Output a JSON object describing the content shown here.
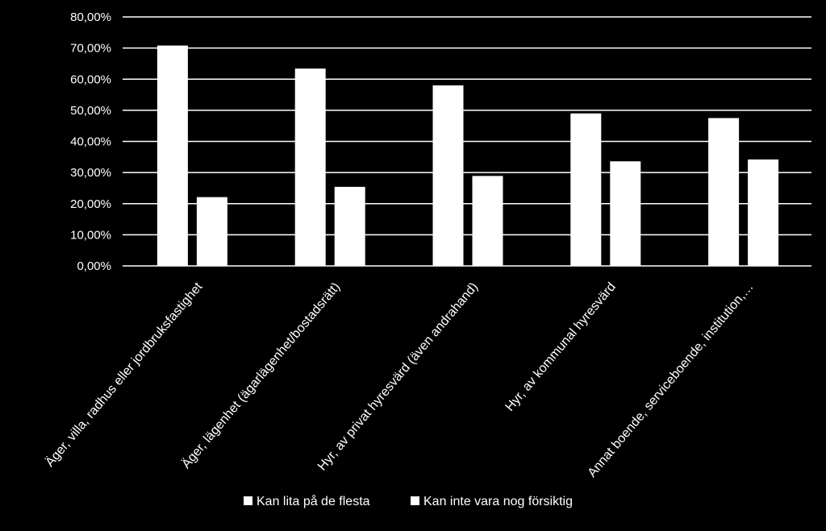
{
  "chart_data": {
    "type": "bar",
    "categories": [
      "Äger, villa, radhus eller jordbruksfastighet",
      "Äger, lägenhet (ägarlägenhet/bostadsrätt)",
      "Hyr, av privat hyresvärd (även andrahand)",
      "Hyr, av kommunal hyresvärd",
      "Annat boende, serviceboende, institution,…"
    ],
    "series": [
      {
        "name": "Kan lita på de flesta",
        "values": [
          70.8,
          63.4,
          58.0,
          49.0,
          47.5
        ]
      },
      {
        "name": "Kan inte vara nog försiktig",
        "values": [
          22.1,
          25.4,
          28.9,
          33.6,
          34.2
        ]
      }
    ],
    "ylim": [
      0,
      80
    ],
    "yticks": [
      "0,00%",
      "10,00%",
      "20,00%",
      "30,00%",
      "40,00%",
      "50,00%",
      "60,00%",
      "70,00%",
      "80,00%"
    ],
    "grid": true,
    "legend_position": "bottom",
    "colors": {
      "background": "#000000",
      "bars": "#ffffff",
      "grid": "#ffffff",
      "text": "#ffffff"
    }
  }
}
